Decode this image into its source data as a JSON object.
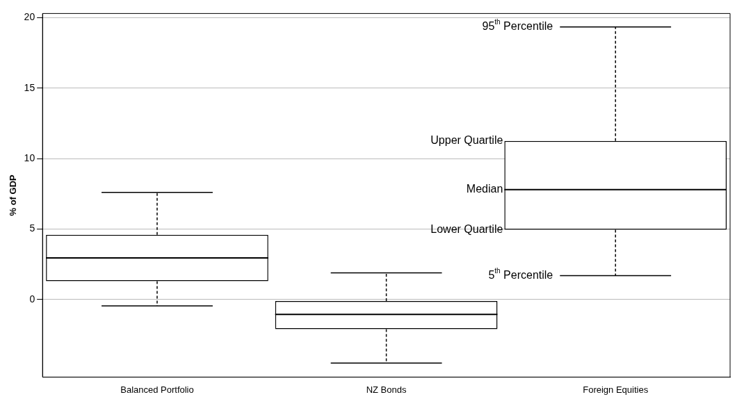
{
  "chart_data": {
    "type": "box",
    "ylabel": "% of GDP",
    "categories": [
      "Balanced Portfolio",
      "NZ Bonds",
      "Foreign Equities"
    ],
    "boxes": [
      {
        "low": -0.45,
        "q1": 1.3,
        "median": 2.95,
        "q3": 4.6,
        "high": 7.6
      },
      {
        "low": -4.5,
        "q1": -2.1,
        "median": -1.05,
        "q3": -0.1,
        "high": 1.9
      },
      {
        "low": 1.7,
        "q1": 4.95,
        "median": 7.8,
        "q3": 11.25,
        "high": 19.35
      }
    ],
    "ylim": [
      -5.5,
      20.3
    ],
    "yticks": [
      0,
      5,
      10,
      15,
      20
    ],
    "grid": "y",
    "legend": false,
    "annotations": [
      "95$^{th}$ Percentile",
      "Upper Quartile",
      "Median",
      "Lower Quartile",
      "5$^{th}$ Percentile"
    ]
  }
}
